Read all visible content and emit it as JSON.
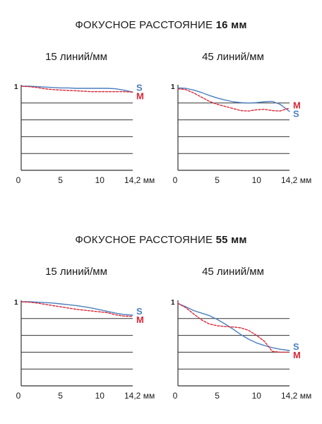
{
  "sections": [
    {
      "title_prefix": "ФОКУСНОЕ РАССТОЯНИЕ",
      "title_focal": "16 мм"
    },
    {
      "title_prefix": "ФОКУСНОЕ РАССТОЯНИЕ",
      "title_focal": "55 мм"
    }
  ],
  "colors": {
    "S": "#4a7fc1",
    "M": "#d42a3a",
    "grid": "#333333"
  },
  "chart_data": [
    {
      "type": "line",
      "title": "15 линий/мм",
      "focal": "16 мм",
      "x_ticks": [
        "0",
        "5",
        "10",
        "14,2 мм"
      ],
      "y_ticks": [
        "1"
      ],
      "xlim": [
        0,
        14.2
      ],
      "ylim": [
        0,
        1
      ],
      "grid": "horizontal",
      "series": [
        {
          "name": "S",
          "x": [
            0,
            1,
            2,
            3,
            4,
            5,
            6,
            7,
            8,
            9,
            10,
            11,
            12,
            13,
            14.2
          ],
          "y": [
            1.0,
            1.0,
            0.995,
            0.99,
            0.985,
            0.98,
            0.98,
            0.975,
            0.975,
            0.975,
            0.975,
            0.975,
            0.97,
            0.955,
            0.93
          ]
        },
        {
          "name": "M",
          "x": [
            0,
            1,
            2,
            3,
            4,
            5,
            6,
            7,
            8,
            9,
            10,
            11,
            12,
            13,
            14.2
          ],
          "y": [
            1.0,
            0.995,
            0.985,
            0.97,
            0.96,
            0.955,
            0.95,
            0.945,
            0.94,
            0.935,
            0.935,
            0.935,
            0.935,
            0.935,
            0.93
          ]
        }
      ]
    },
    {
      "type": "line",
      "title": "45 линий/мм",
      "focal": "16 мм",
      "x_ticks": [
        "0",
        "5",
        "10",
        "14,2 мм"
      ],
      "y_ticks": [
        "1"
      ],
      "xlim": [
        0,
        14.2
      ],
      "ylim": [
        0,
        1
      ],
      "grid": "horizontal",
      "series": [
        {
          "name": "S",
          "x": [
            0,
            1,
            2,
            3,
            4,
            5,
            6,
            7,
            8,
            9,
            10,
            11,
            12,
            13,
            14.2
          ],
          "y": [
            0.98,
            0.975,
            0.955,
            0.925,
            0.89,
            0.86,
            0.835,
            0.815,
            0.805,
            0.8,
            0.805,
            0.815,
            0.82,
            0.785,
            0.7
          ]
        },
        {
          "name": "M",
          "x": [
            0,
            1,
            2,
            3,
            4,
            5,
            6,
            7,
            8,
            9,
            10,
            11,
            12,
            13,
            14.2
          ],
          "y": [
            0.97,
            0.96,
            0.92,
            0.87,
            0.82,
            0.785,
            0.76,
            0.735,
            0.71,
            0.705,
            0.72,
            0.725,
            0.71,
            0.705,
            0.74
          ]
        }
      ]
    },
    {
      "type": "line",
      "title": "15 линий/мм",
      "focal": "55 мм",
      "x_ticks": [
        "0",
        "5",
        "10",
        "14,2 мм"
      ],
      "y_ticks": [
        "1"
      ],
      "xlim": [
        0,
        14.2
      ],
      "ylim": [
        0,
        1
      ],
      "grid": "horizontal",
      "series": [
        {
          "name": "S",
          "x": [
            0,
            1,
            2,
            3,
            4,
            5,
            6,
            7,
            8,
            9,
            10,
            11,
            12,
            13,
            14.2
          ],
          "y": [
            1.0,
            1.0,
            0.995,
            0.99,
            0.985,
            0.975,
            0.965,
            0.955,
            0.94,
            0.925,
            0.905,
            0.885,
            0.865,
            0.85,
            0.84
          ]
        },
        {
          "name": "M",
          "x": [
            0,
            1,
            2,
            3,
            4,
            5,
            6,
            7,
            8,
            9,
            10,
            11,
            12,
            13,
            14.2
          ],
          "y": [
            1.0,
            0.995,
            0.985,
            0.97,
            0.955,
            0.94,
            0.925,
            0.91,
            0.9,
            0.89,
            0.88,
            0.87,
            0.845,
            0.83,
            0.825
          ]
        }
      ]
    },
    {
      "type": "line",
      "title": "45 линий/мм",
      "focal": "55 мм",
      "x_ticks": [
        "0",
        "5",
        "10",
        "14,2 мм"
      ],
      "y_ticks": [
        "1"
      ],
      "xlim": [
        0,
        14.2
      ],
      "ylim": [
        0,
        1
      ],
      "grid": "horizontal",
      "series": [
        {
          "name": "S",
          "x": [
            0,
            1,
            2,
            3,
            4,
            5,
            6,
            7,
            8,
            9,
            10,
            11,
            12,
            13,
            14.2
          ],
          "y": [
            0.98,
            0.94,
            0.895,
            0.865,
            0.835,
            0.79,
            0.735,
            0.675,
            0.61,
            0.555,
            0.51,
            0.48,
            0.455,
            0.435,
            0.42
          ]
        },
        {
          "name": "M",
          "x": [
            0,
            1,
            2,
            3,
            4,
            5,
            6,
            7,
            8,
            9,
            10,
            11,
            12,
            13,
            14.2
          ],
          "y": [
            0.98,
            0.93,
            0.855,
            0.785,
            0.735,
            0.715,
            0.705,
            0.7,
            0.69,
            0.66,
            0.6,
            0.53,
            0.41,
            0.4,
            0.4
          ]
        }
      ]
    }
  ]
}
